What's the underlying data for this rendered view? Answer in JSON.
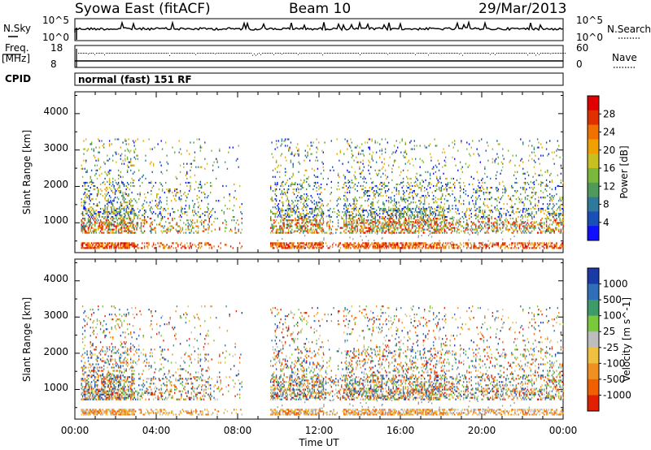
{
  "header": {
    "station": "Syowa East (fitACF)",
    "beam": "Beam 10",
    "date": "29/Mar/2013"
  },
  "strips": {
    "nsky_label": "N.Sky",
    "nsky_top": "10^5",
    "nsky_bottom": "10^0",
    "nsearch_top": "10^5",
    "nsearch_bottom": "10^0",
    "nsearch_label": "N.Search",
    "freq_label_1": "Freq.",
    "freq_label_2": "[MHz]",
    "freq_top": "18",
    "freq_bottom": "8",
    "nave_top": "60",
    "nave_bottom": "0",
    "nave_label": "Nave",
    "cpid_label": "CPID",
    "cpid_text": "normal (fast) 151 RF"
  },
  "chart_data": [
    {
      "type": "heatmap",
      "title": "",
      "xlabel": "",
      "ylabel": "Slant Range [km]",
      "xlim": [
        0,
        24
      ],
      "ylim": [
        180,
        4600
      ],
      "x_ticks": [],
      "y_ticks": [
        "1000",
        "2000",
        "3000",
        "4000"
      ],
      "colorbar": {
        "label": "Power [dB]",
        "ticks": [
          "4",
          "8",
          "12",
          "16",
          "20",
          "24",
          "28"
        ],
        "colors": [
          "#1010ff",
          "#1a4fb8",
          "#2f7a9a",
          "#4f9a5a",
          "#7ab83c",
          "#c8c020",
          "#f0a000",
          "#f07000",
          "#e03000",
          "#e00000"
        ]
      }
    },
    {
      "type": "heatmap",
      "title": "",
      "xlabel": "Time UT",
      "ylabel": "Slant Range [km]",
      "xlim": [
        0,
        24
      ],
      "ylim": [
        180,
        4600
      ],
      "x_ticks": [
        "00:00",
        "04:00",
        "08:00",
        "12:00",
        "16:00",
        "20:00",
        "00:00"
      ],
      "y_ticks": [
        "1000",
        "2000",
        "3000",
        "4000"
      ],
      "colorbar": {
        "label": "Velocity [m s^-1]",
        "ticks": [
          "1000",
          "500",
          "100",
          "25",
          "-25",
          "-100",
          "-500",
          "-1000"
        ],
        "colors": [
          "#1a3aa8",
          "#2f6fb8",
          "#3f9a6a",
          "#7ac83c",
          "#bdbdbd",
          "#f0c040",
          "#f09020",
          "#f06000",
          "#e02000"
        ]
      }
    }
  ],
  "colors": {
    "groundscatter": "#9a9a9a"
  }
}
